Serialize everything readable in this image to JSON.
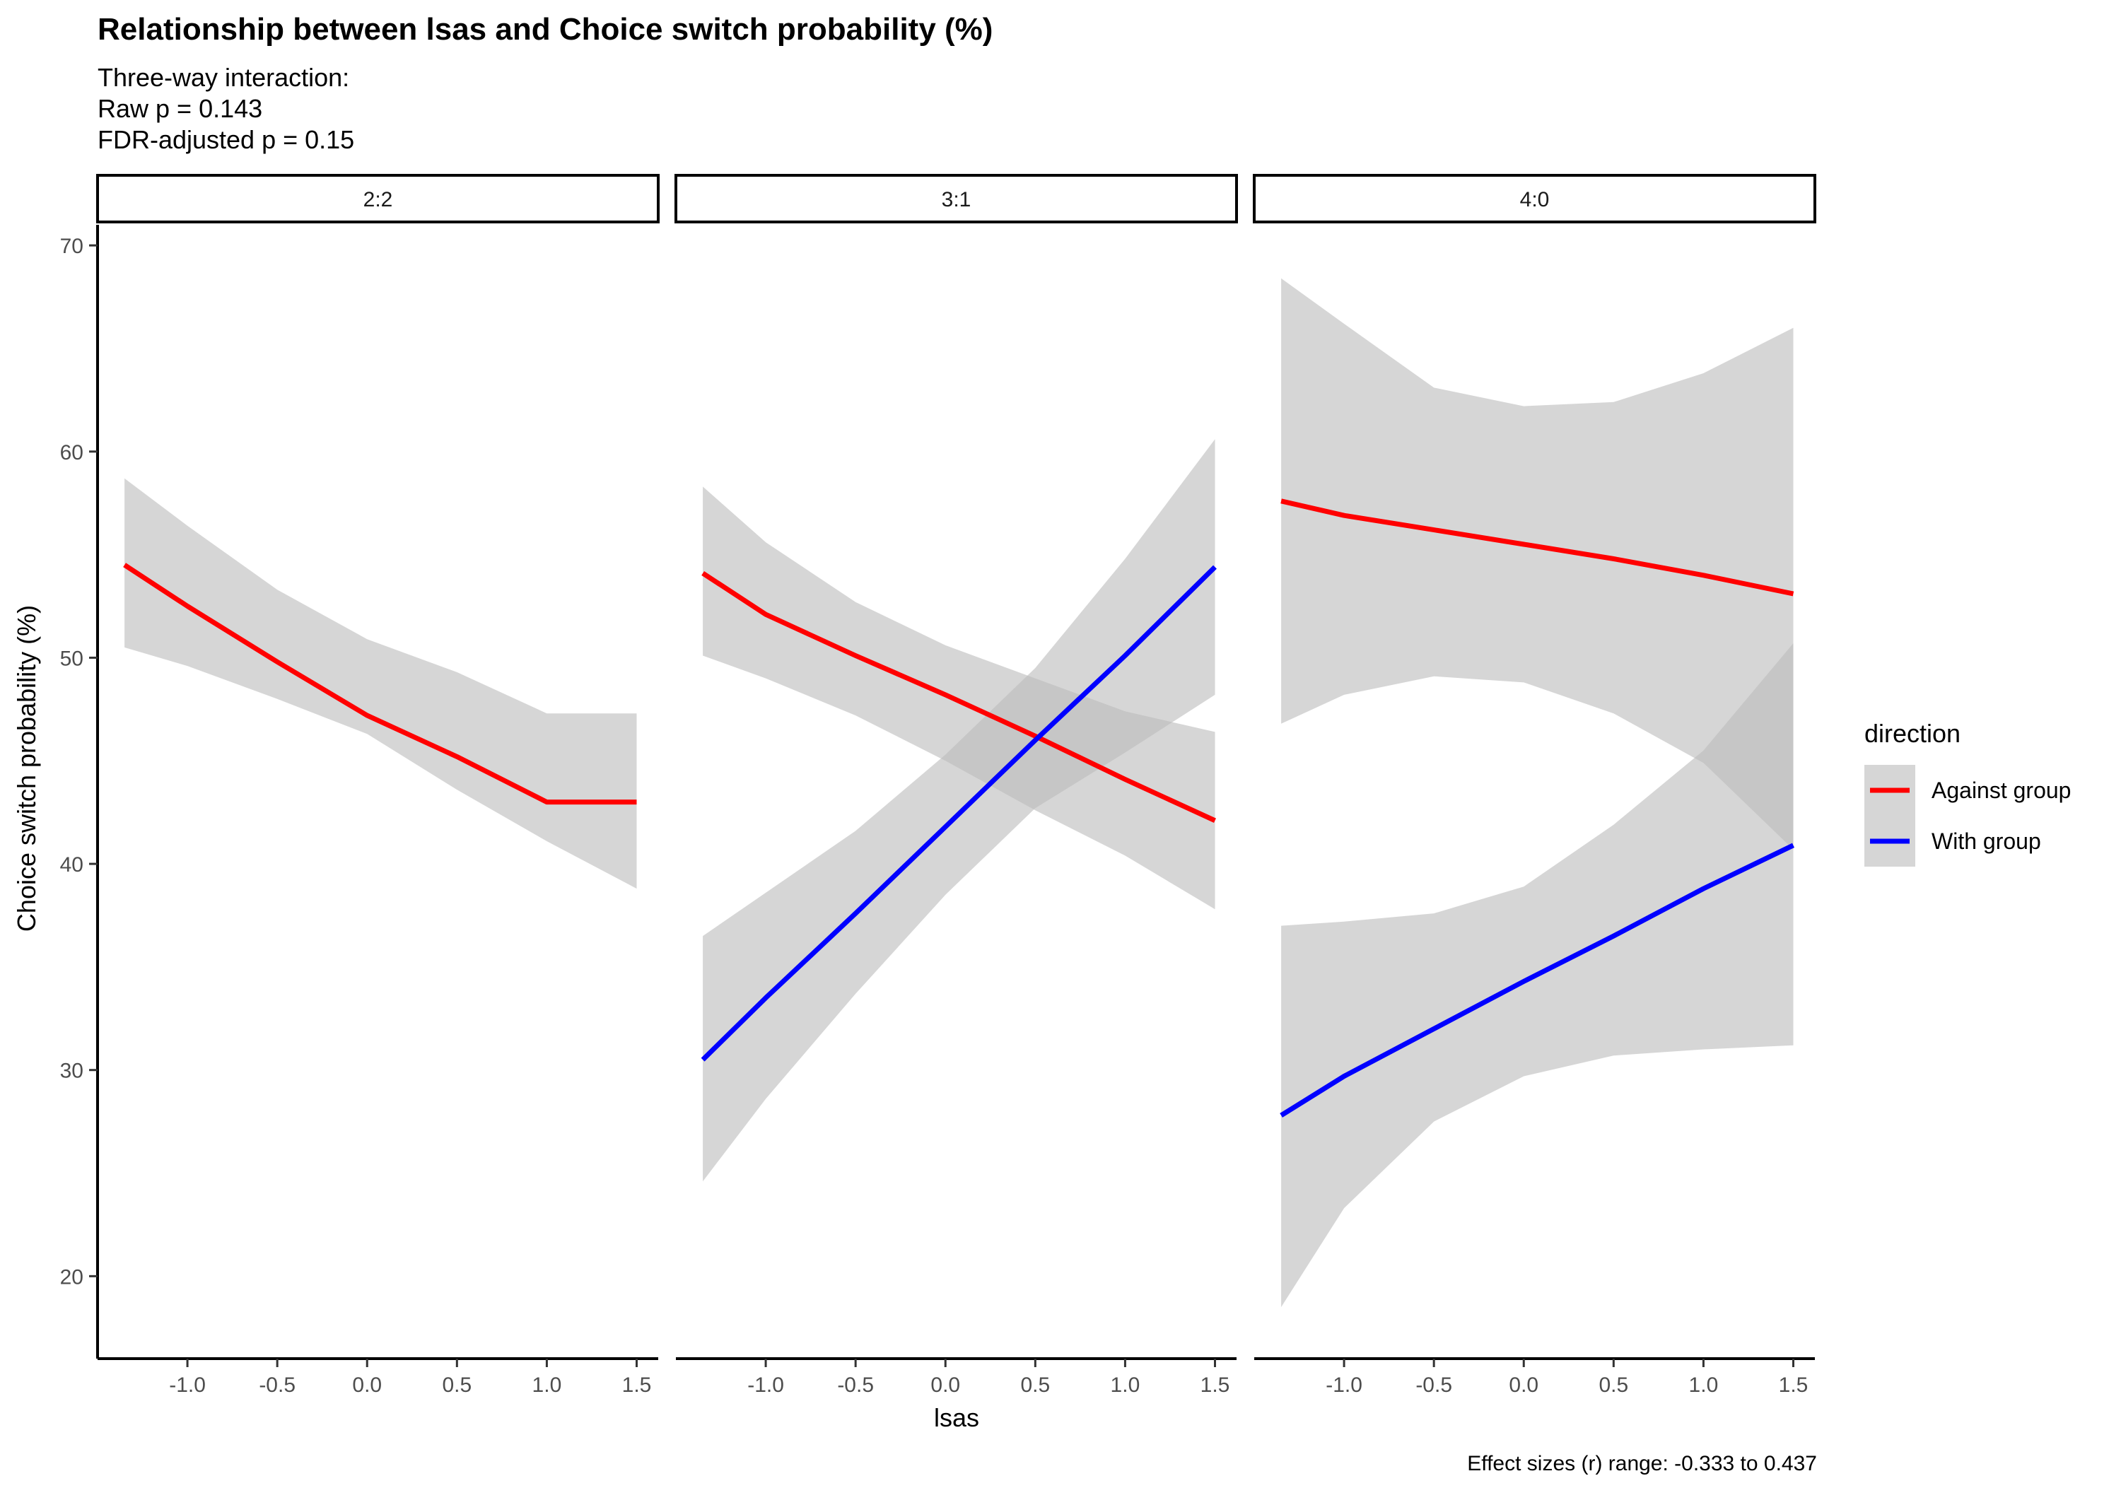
{
  "chart_data": {
    "type": "line",
    "title": "Relationship between lsas and Choice switch probability (%)",
    "subtitle_lines": [
      "Three-way interaction:",
      "Raw p = 0.143",
      "FDR-adjusted p = 0.15"
    ],
    "xlabel": "lsas",
    "ylabel": "Choice switch probability (%)",
    "caption": "Effect sizes (r) range: -0.333 to 0.437",
    "xlim": [
      -1.5,
      1.62
    ],
    "ylim": [
      16,
      71
    ],
    "x_ticks": [
      -1.0,
      -0.5,
      0.0,
      0.5,
      1.0,
      1.5
    ],
    "x_tick_labels": [
      "-1.0",
      "-0.5",
      "0.0",
      "0.5",
      "1.0",
      "1.5"
    ],
    "y_ticks": [
      20,
      30,
      40,
      50,
      60,
      70
    ],
    "y_tick_labels": [
      "20",
      "30",
      "40",
      "50",
      "60",
      "70"
    ],
    "grid": false,
    "legend": {
      "title": "direction",
      "position": "right",
      "entries": [
        {
          "name": "Against group",
          "color": "#ff0000"
        },
        {
          "name": "With group",
          "color": "#0000ff"
        }
      ]
    },
    "ribbon_color": "#bdbdbd",
    "panels": [
      {
        "label": "2:2",
        "series": [
          {
            "name": "Against group",
            "color": "#ff0000",
            "x": [
              -1.35,
              -1.0,
              -0.5,
              0.0,
              0.5,
              1.0,
              1.5
            ],
            "y": [
              54.5,
              52.5,
              49.8,
              47.2,
              45.2,
              43.0,
              43.0
            ],
            "lower": [
              50.5,
              49.6,
              48.0,
              46.3,
              43.6,
              41.1,
              38.8
            ],
            "upper": [
              58.7,
              56.4,
              53.3,
              50.9,
              49.3,
              47.3,
              47.3
            ]
          }
        ]
      },
      {
        "label": "3:1",
        "series": [
          {
            "name": "Against group",
            "color": "#ff0000",
            "x": [
              -1.35,
              -1.0,
              -0.5,
              0.0,
              0.5,
              1.0,
              1.5
            ],
            "y": [
              54.1,
              52.1,
              50.1,
              48.2,
              46.2,
              44.1,
              42.1
            ],
            "lower": [
              50.1,
              49.0,
              47.2,
              45.0,
              42.6,
              40.4,
              37.8
            ],
            "upper": [
              58.3,
              55.6,
              52.7,
              50.6,
              49.0,
              47.4,
              46.4
            ]
          },
          {
            "name": "With group",
            "color": "#0000ff",
            "x": [
              -1.35,
              -1.0,
              -0.5,
              0.0,
              0.5,
              1.0,
              1.5
            ],
            "y": [
              30.5,
              33.5,
              37.6,
              41.8,
              46.0,
              50.1,
              54.4
            ],
            "lower": [
              24.6,
              28.6,
              33.7,
              38.5,
              42.7,
              45.4,
              48.2
            ],
            "upper": [
              36.5,
              38.6,
              41.6,
              45.3,
              49.5,
              54.8,
              60.6
            ]
          }
        ]
      },
      {
        "label": "4:0",
        "series": [
          {
            "name": "Against group",
            "color": "#ff0000",
            "x": [
              -1.35,
              -1.0,
              -0.5,
              0.0,
              0.5,
              1.0,
              1.5
            ],
            "y": [
              57.6,
              56.9,
              56.2,
              55.5,
              54.8,
              54.0,
              53.1
            ],
            "lower": [
              46.8,
              48.2,
              49.1,
              48.8,
              47.3,
              44.9,
              40.7
            ],
            "upper": [
              68.4,
              66.2,
              63.1,
              62.2,
              62.4,
              63.8,
              66.0
            ]
          },
          {
            "name": "With group",
            "color": "#0000ff",
            "x": [
              -1.35,
              -1.0,
              -0.5,
              0.0,
              0.5,
              1.0,
              1.5
            ],
            "y": [
              27.8,
              29.7,
              32.0,
              34.3,
              36.5,
              38.8,
              40.9
            ],
            "lower": [
              18.5,
              23.3,
              27.5,
              29.7,
              30.7,
              31.0,
              31.2
            ],
            "upper": [
              37.0,
              37.2,
              37.6,
              38.9,
              41.9,
              45.5,
              50.7
            ]
          }
        ]
      }
    ]
  }
}
